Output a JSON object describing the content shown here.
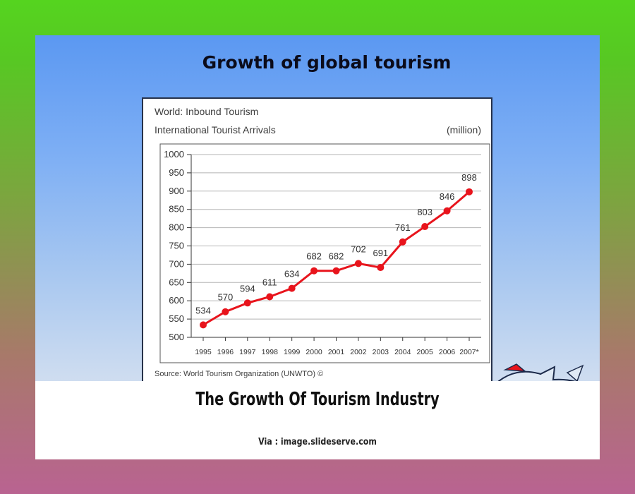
{
  "slide": {
    "title": "Growth of global tourism"
  },
  "caption": {
    "title": "The Growth Of Tourism Industry",
    "via": "Via : image.slideserve.com"
  },
  "colors": {
    "page_gradient_top": "#55d41f",
    "page_gradient_bottom": "#b96391",
    "slide_blue": "#5b98f2",
    "series_red": "#e8141c"
  },
  "chart_data": {
    "type": "line",
    "title_line1": "World: Inbound Tourism",
    "title_line2": "International Tourist Arrivals",
    "unit": "(million)",
    "source": "Source: World Tourism Organization (UNWTO) ©",
    "categories": [
      "1995",
      "1996",
      "1997",
      "1998",
      "1999",
      "2000",
      "2001",
      "2002",
      "2003",
      "2004",
      "2005",
      "2006",
      "2007*"
    ],
    "values": [
      534,
      570,
      594,
      611,
      634,
      682,
      682,
      702,
      691,
      761,
      803,
      846,
      898
    ],
    "ylim": [
      500,
      1000
    ],
    "yticks": [
      500,
      550,
      600,
      650,
      700,
      750,
      800,
      850,
      900,
      950,
      1000
    ],
    "grid": true,
    "xlabel": "",
    "ylabel": ""
  }
}
